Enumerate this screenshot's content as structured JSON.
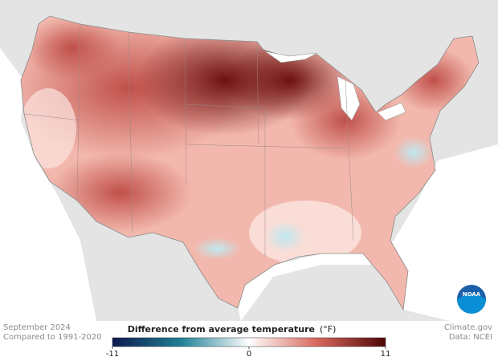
{
  "map": {
    "period": "September 2024",
    "baseline": "Compared to 1991-2020",
    "credit": "Climate.gov",
    "source": "Data: NCEI",
    "logo": "NOAA"
  },
  "legend": {
    "title": "Difference from average temperature",
    "unit": "(°F)",
    "range": [
      -11,
      11
    ],
    "ticks": [
      -11,
      0,
      11
    ],
    "colors": [
      "#0d1a4d",
      "#1f7f96",
      "#ffffff",
      "#d9665c",
      "#4d0707"
    ]
  }
}
